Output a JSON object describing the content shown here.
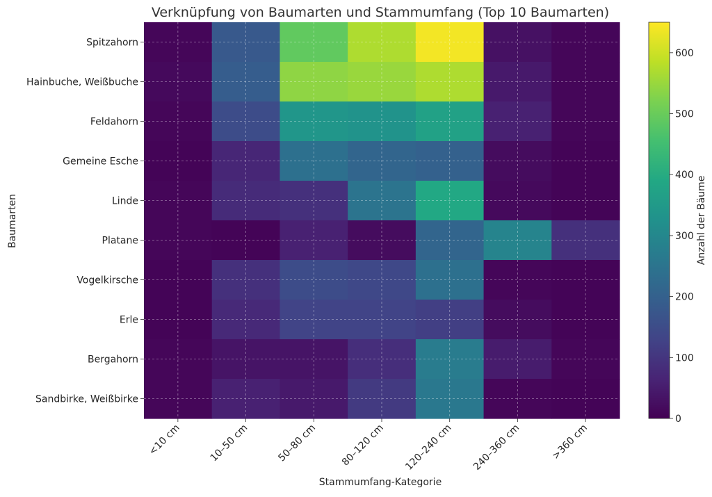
{
  "chart_data": {
    "type": "heatmap",
    "title": "Verknüpfung von Baumarten und Stammumfang (Top 10 Baumarten)",
    "xlabel": "Stammumfang-Kategorie",
    "ylabel": "Baumarten",
    "x_categories": [
      "<10 cm",
      "10–50 cm",
      "50–80 cm",
      "80–120 cm",
      "120–240 cm",
      "240–360 cm",
      ">360 cm"
    ],
    "y_categories": [
      "Spitzahorn",
      "Hainbuche, Weißbuche",
      "Feldahorn",
      "Gemeine Esche",
      "Linde",
      "Platane",
      "Vogelkirsche",
      "Erle",
      "Bergahorn",
      "Sandbirke, Weißbirke"
    ],
    "values": [
      [
        10,
        180,
        490,
        570,
        640,
        30,
        10
      ],
      [
        15,
        190,
        540,
        550,
        570,
        45,
        10
      ],
      [
        10,
        150,
        340,
        330,
        370,
        60,
        10
      ],
      [
        5,
        70,
        240,
        210,
        200,
        20,
        5
      ],
      [
        10,
        80,
        90,
        250,
        390,
        15,
        5
      ],
      [
        10,
        5,
        60,
        20,
        210,
        290,
        90
      ],
      [
        5,
        90,
        150,
        140,
        240,
        10,
        5
      ],
      [
        5,
        75,
        130,
        130,
        120,
        20,
        5
      ],
      [
        10,
        35,
        35,
        85,
        270,
        50,
        10
      ],
      [
        10,
        60,
        45,
        110,
        260,
        10,
        5
      ]
    ],
    "colorbar": {
      "label": "Anzahl der Bäume",
      "min": 0,
      "max": 650,
      "ticks": [
        "0",
        "100",
        "200",
        "300",
        "400",
        "500",
        "600"
      ]
    },
    "colormap": "viridis",
    "grid": true
  }
}
